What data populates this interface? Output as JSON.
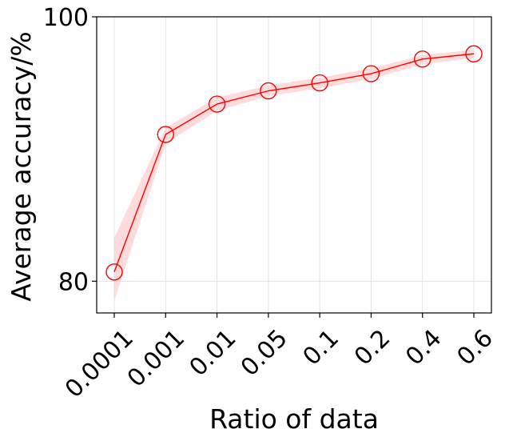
{
  "chart_data": {
    "type": "line",
    "xlabel": "Ratio of data",
    "ylabel": "Average accuracy/%",
    "categories": [
      "0.0001",
      "0.001",
      "0.01",
      "0.05",
      "0.1",
      "0.2",
      "0.4",
      "0.6"
    ],
    "series": [
      {
        "values": [
          80.7,
          91.1,
          93.4,
          94.4,
          95.0,
          95.7,
          96.8,
          97.2
        ],
        "lower": [
          78.5,
          90.4,
          92.9,
          94.0,
          94.6,
          95.3,
          96.4,
          96.9
        ],
        "upper": [
          83.3,
          91.6,
          93.9,
          94.8,
          95.4,
          96.1,
          97.1,
          97.5
        ],
        "color": "#ff0000",
        "band_color": "#ffcccc",
        "marker": "open-circle"
      }
    ],
    "ylim": [
      77.6,
      100
    ],
    "yticks": [
      80,
      100
    ],
    "grid": true
  }
}
